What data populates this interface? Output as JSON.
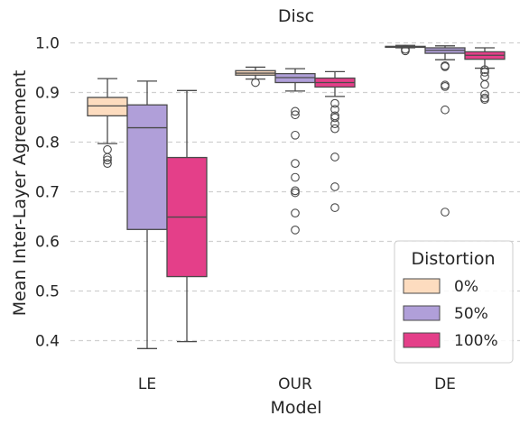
{
  "chart_data": {
    "type": "box",
    "title": "Disc",
    "xlabel": "Model",
    "ylabel": "Mean Inter-Layer Agreement",
    "categories": [
      "LE",
      "OUR",
      "DE"
    ],
    "ylim": [
      0.35,
      1.02
    ],
    "yticks": [
      0.4,
      0.5,
      0.6,
      0.7,
      0.8,
      0.9,
      1.0
    ],
    "ytick_labels": [
      "0.4",
      "0.5",
      "0.6",
      "0.7",
      "0.8",
      "0.9",
      "1.0"
    ],
    "grid": "horizontal dashed",
    "legend": {
      "title": "Distortion",
      "placement": "lower-right"
    },
    "series": [
      {
        "name": "0%",
        "color": "#FDDCBF",
        "boxes": [
          {
            "whislo": 0.797,
            "q1": 0.853,
            "med": 0.873,
            "q3": 0.89,
            "whishi": 0.928,
            "fliers": [
              0.785,
              0.769,
              0.764,
              0.757
            ]
          },
          {
            "whislo": 0.927,
            "q1": 0.935,
            "med": 0.939,
            "q3": 0.944,
            "whishi": 0.951,
            "fliers": [
              0.92
            ]
          },
          {
            "whislo": 0.99,
            "q1": 0.991,
            "med": 0.992,
            "q3": 0.993,
            "whishi": 0.995,
            "fliers": [
              0.987,
              0.984
            ]
          }
        ]
      },
      {
        "name": "50%",
        "color": "#B09FD9",
        "boxes": [
          {
            "whislo": 0.384,
            "q1": 0.624,
            "med": 0.829,
            "q3": 0.875,
            "whishi": 0.923,
            "fliers": []
          },
          {
            "whislo": 0.903,
            "q1": 0.92,
            "med": 0.93,
            "q3": 0.938,
            "whishi": 0.948,
            "fliers": [
              0.862,
              0.855,
              0.814,
              0.757,
              0.729,
              0.702,
              0.698,
              0.657,
              0.623
            ]
          },
          {
            "whislo": 0.966,
            "q1": 0.979,
            "med": 0.985,
            "q3": 0.99,
            "whishi": 0.994,
            "fliers": [
              0.954,
              0.952,
              0.915,
              0.912,
              0.865,
              0.659
            ]
          }
        ]
      },
      {
        "name": "100%",
        "color": "#E43F89",
        "boxes": [
          {
            "whislo": 0.398,
            "q1": 0.529,
            "med": 0.649,
            "q3": 0.769,
            "whishi": 0.904,
            "fliers": []
          },
          {
            "whislo": 0.892,
            "q1": 0.911,
            "med": 0.92,
            "q3": 0.929,
            "whishi": 0.942,
            "fliers": [
              0.878,
              0.866,
              0.853,
              0.849,
              0.837,
              0.827,
              0.77,
              0.71,
              0.668
            ]
          },
          {
            "whislo": 0.949,
            "q1": 0.967,
            "med": 0.975,
            "q3": 0.982,
            "whishi": 0.99,
            "fliers": [
              0.946,
              0.941,
              0.932,
              0.916,
              0.896,
              0.889,
              0.886
            ]
          }
        ]
      }
    ]
  }
}
